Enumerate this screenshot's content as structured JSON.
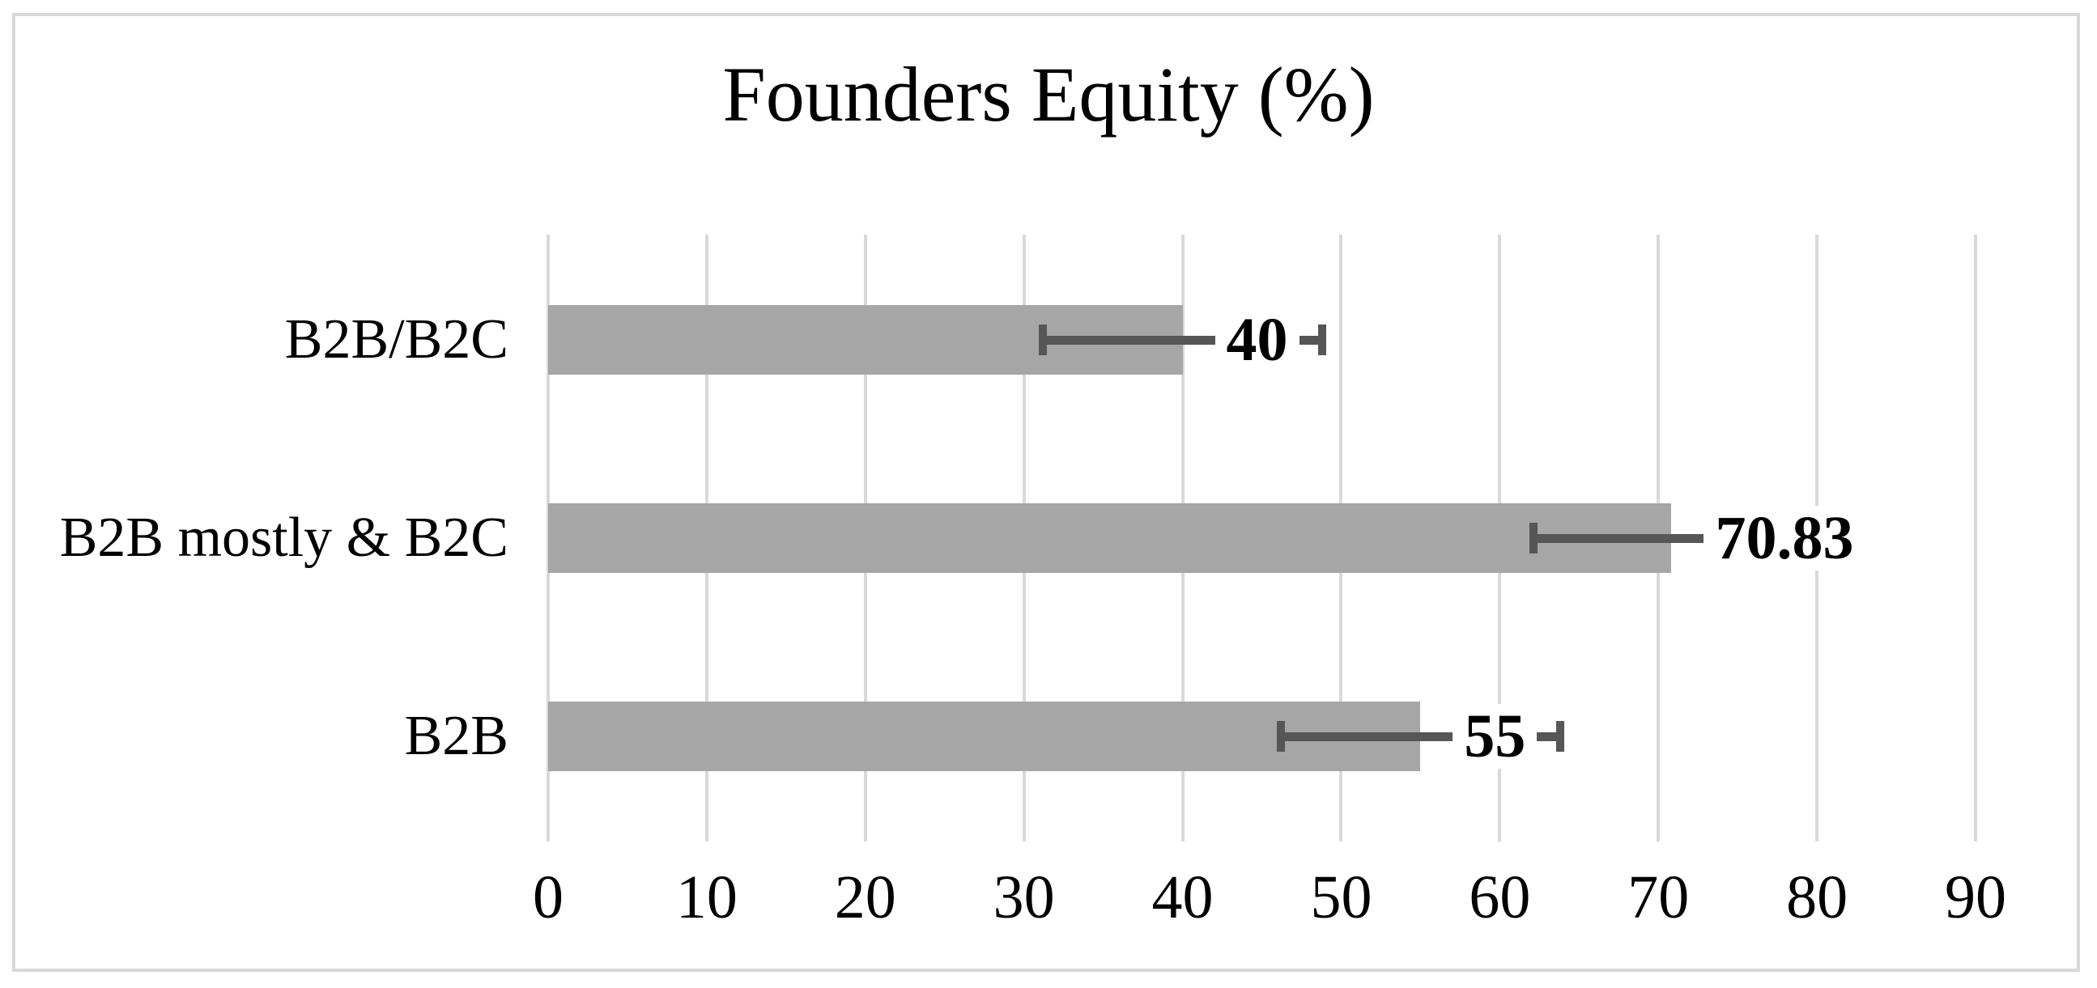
{
  "figure": {
    "background": "#ffffff",
    "border_color": "#d8d8d8"
  },
  "chart_data": {
    "type": "bar",
    "orientation": "horizontal",
    "title": "Founders Equity (%)",
    "categories": [
      "B2B/B2C",
      "B2B mostly & B2C",
      "B2B"
    ],
    "values": [
      40,
      70.83,
      55
    ],
    "data_labels": [
      "40",
      "70.83",
      "55"
    ],
    "error_bars": [
      8.8,
      8.7,
      8.8
    ],
    "x_ticks": [
      "0",
      "10",
      "20",
      "30",
      "40",
      "50",
      "60",
      "70",
      "80",
      "90"
    ],
    "xlim": [
      0,
      90
    ],
    "xlabel": "",
    "ylabel": "",
    "grid": true,
    "legend": "none",
    "bar_color": "#a6a6a6",
    "error_bar_color": "#565656",
    "gridline_color": "#d9d9d9",
    "text_color": "#000000"
  }
}
